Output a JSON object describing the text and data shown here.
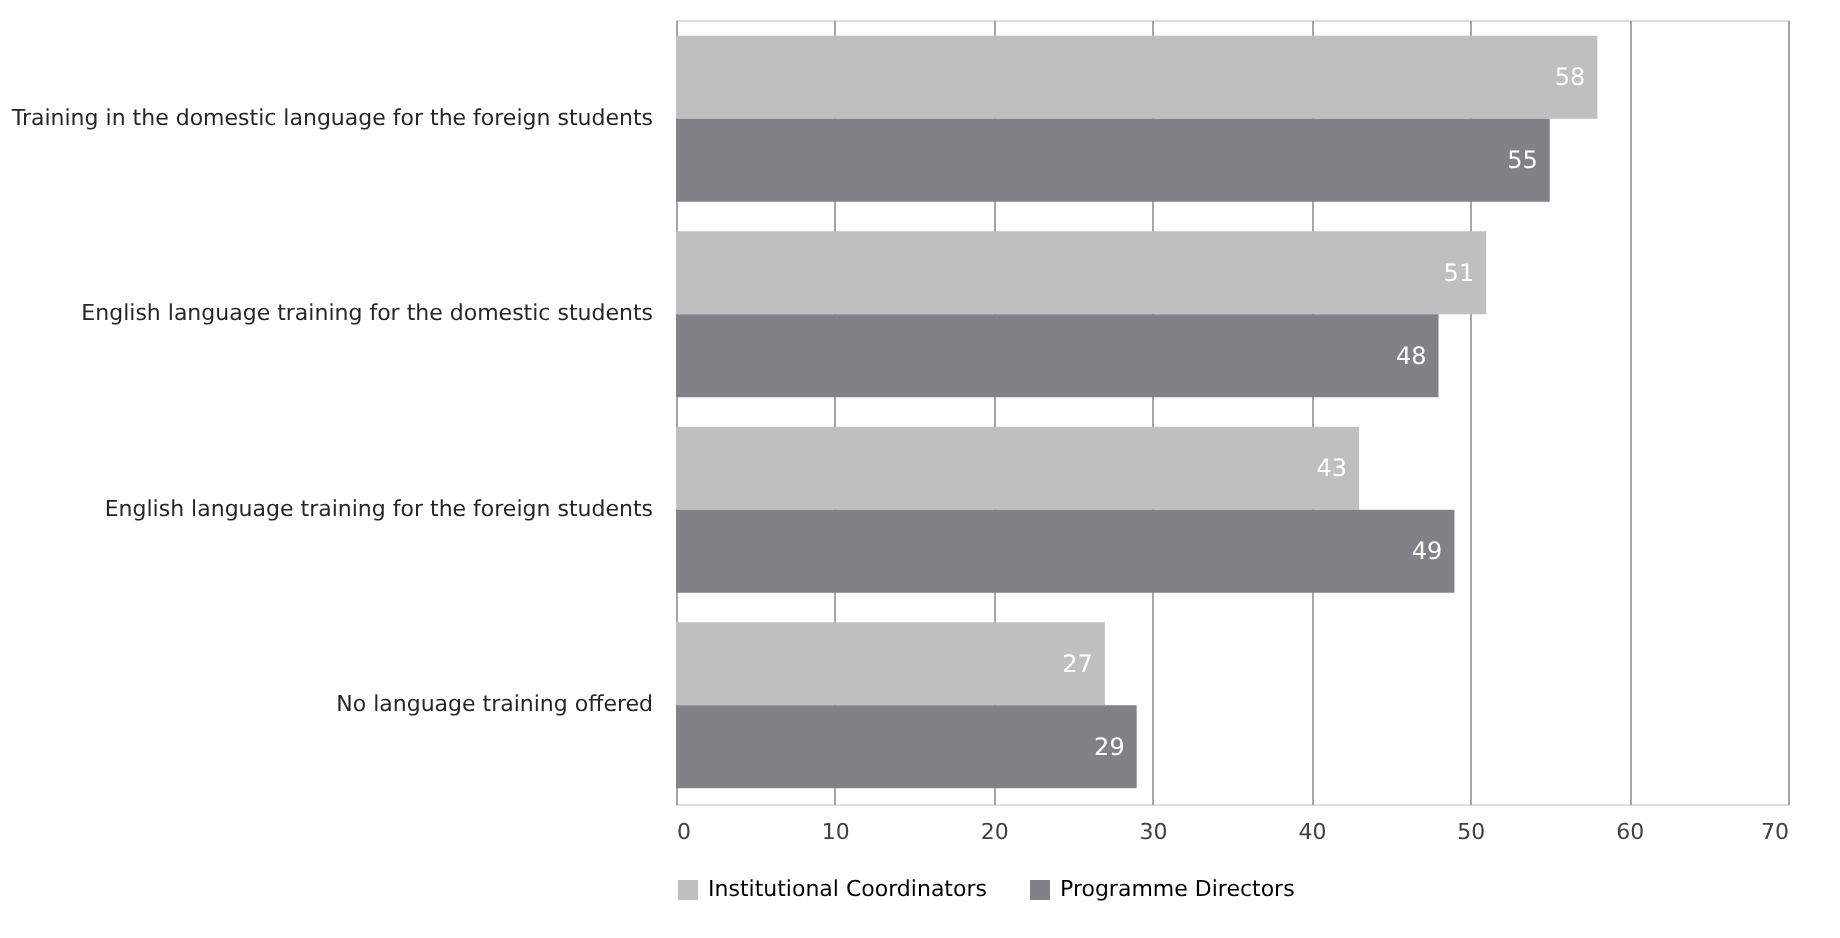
{
  "chart_data": {
    "type": "bar",
    "orientation": "horizontal",
    "categories": [
      "Training in the domestic language for the foreign students",
      "English language training for the domestic students",
      "English language training for the foreign students",
      "No language training offered"
    ],
    "series": [
      {
        "name": "Institutional Coordinators",
        "color": "#bfbfbf",
        "values": [
          58,
          51,
          43,
          27
        ]
      },
      {
        "name": "Programme Directors",
        "color": "#808285",
        "values": [
          55,
          48,
          49,
          29
        ]
      }
    ],
    "xlim": [
      0,
      70
    ],
    "xticks": [
      0,
      10,
      20,
      30,
      40,
      50,
      60,
      70
    ],
    "grid": "x",
    "legend": "bottom",
    "data_labels": true
  }
}
